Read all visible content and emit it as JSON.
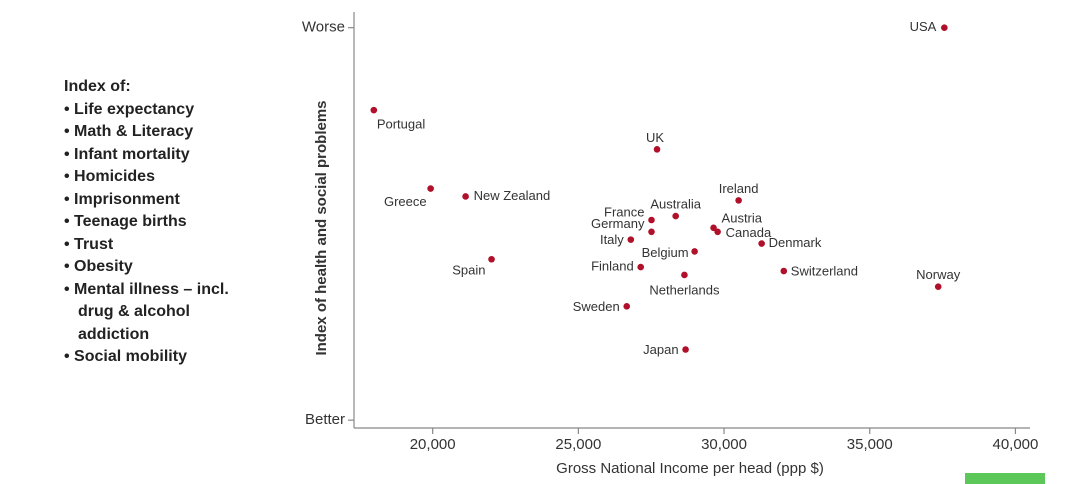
{
  "sidebar": {
    "heading": "Index of:",
    "items": [
      "Life expectancy",
      "Math & Literacy",
      "Infant mortality",
      "Homicides",
      "Imprisonment",
      "Teenage births",
      "Trust",
      "Obesity",
      "Mental illness – incl. drug & alcohol addiction",
      "Social mobility"
    ]
  },
  "chart_data": {
    "type": "scatter",
    "x_label": "Gross National Income per head (ppp $)",
    "y_label": "Index of health and social problems",
    "color": "#b0102a",
    "labels": [
      "USA",
      "Portugal",
      "UK",
      "Greece",
      "New Zealand",
      "Ireland",
      "Australia",
      "France",
      "Austria",
      "Germany",
      "Canada",
      "Italy",
      "Denmark",
      "Belgium",
      "Spain",
      "Finland",
      "Switzerland",
      "Netherlands",
      "Norway",
      "Sweden",
      "Japan"
    ],
    "x": [
      37560,
      17980,
      27700,
      19930,
      21130,
      30500,
      28340,
      27510,
      29640,
      27510,
      29780,
      26800,
      31290,
      28990,
      22020,
      27140,
      32050,
      28640,
      37350,
      26660,
      28680
    ],
    "y": [
      1.0,
      0.79,
      0.69,
      0.59,
      0.57,
      0.56,
      0.52,
      0.51,
      0.49,
      0.48,
      0.48,
      0.46,
      0.45,
      0.43,
      0.41,
      0.39,
      0.38,
      0.37,
      0.34,
      0.29,
      0.18
    ],
    "xlim": [
      17300,
      40500
    ],
    "ylim": [
      -0.02,
      1.04
    ],
    "xticks": [
      {
        "value": 20000,
        "label": "20,000"
      },
      {
        "value": 25000,
        "label": "25,000"
      },
      {
        "value": 30000,
        "label": "30,000"
      },
      {
        "value": 35000,
        "label": "35,000"
      },
      {
        "value": 40000,
        "label": "40,000"
      }
    ],
    "yticks": [
      {
        "value": 0,
        "label": "Better"
      },
      {
        "value": 1,
        "label": "Worse"
      }
    ]
  }
}
